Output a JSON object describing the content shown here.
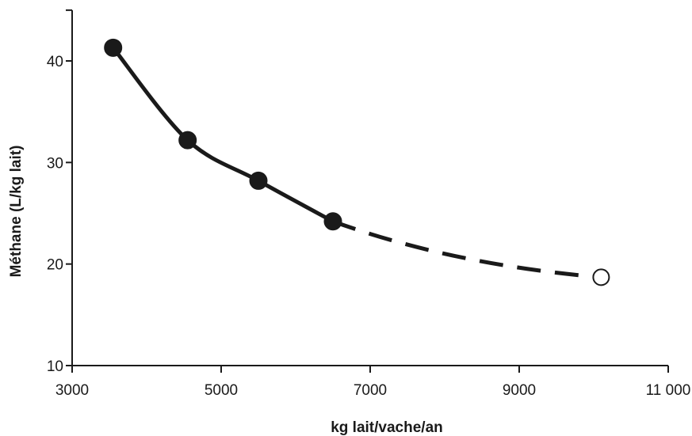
{
  "chart_data": {
    "type": "line",
    "xlabel": "kg lait/vache/an",
    "ylabel": "Méthane  (L/kg lait)",
    "xlim": [
      3000,
      11000
    ],
    "ylim": [
      10,
      45
    ],
    "x_ticks": [
      3000,
      5000,
      7000,
      9000,
      11000
    ],
    "x_tick_labels": [
      "3000",
      "5000",
      "7000",
      "9000",
      "11 000"
    ],
    "y_ticks": [
      10,
      20,
      30,
      40
    ],
    "y_tick_labels": [
      "10",
      "20",
      "30",
      "40"
    ],
    "grid": false,
    "series": [
      {
        "style": "solid",
        "marker": "filled-circle",
        "points": [
          {
            "x": 3550,
            "y": 41.3
          },
          {
            "x": 4550,
            "y": 32.2
          },
          {
            "x": 5500,
            "y": 28.2
          },
          {
            "x": 6500,
            "y": 24.2
          }
        ]
      },
      {
        "style": "dashed",
        "marker": "open-circle",
        "points": [
          {
            "x": 10100,
            "y": 18.7
          }
        ]
      }
    ],
    "colors": {
      "line": "#1a1a1a",
      "marker_fill": "#1a1a1a",
      "open_marker_fill": "#ffffff"
    }
  }
}
